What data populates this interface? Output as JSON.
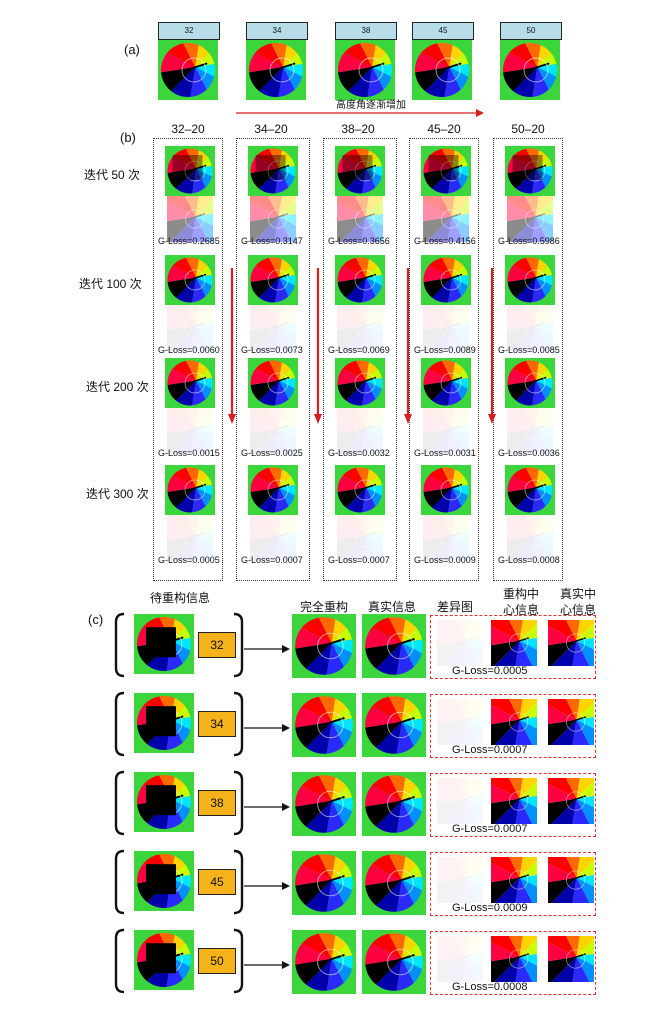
{
  "panel_a": {
    "label": "(a)",
    "headers": [
      "32",
      "34",
      "38",
      "45",
      "50"
    ],
    "arrow_text": "高度角逐渐增加"
  },
  "panel_b": {
    "label": "(b)",
    "columns": [
      "32–20",
      "34–20",
      "38–20",
      "45–20",
      "50–20"
    ],
    "iterations": [
      "迭代 50 次",
      "迭代 100 次",
      "迭代 200 次",
      "迭代 300 次"
    ],
    "gloss": [
      [
        "G-Loss=0.2685",
        "G-Loss=0.3147",
        "G-Loss=0.3656",
        "G-Loss=0.4156",
        "G-Loss=0.5986"
      ],
      [
        "G-Loss=0.0060",
        "G-Loss=0.0073",
        "G-Loss=0.0069",
        "G-Loss=0.0089",
        "G-Loss=0.0085"
      ],
      [
        "G-Loss=0.0015",
        "G-Loss=0.0025",
        "G-Loss=0.0032",
        "G-Loss=0.0031",
        "G-Loss=0.0036"
      ],
      [
        "G-Loss=0.0005",
        "G-Loss=0.0007",
        "G-Loss=0.0007",
        "G-Loss=0.0009",
        "G-Loss=0.0008"
      ]
    ]
  },
  "panel_c": {
    "label": "(c)",
    "headers": {
      "input": "待重构信息",
      "full": "完全重构",
      "truth": "真实信息",
      "diff": "差异图",
      "rec_center_1": "重构中",
      "rec_center_2": "心信息",
      "true_center_1": "真实中",
      "true_center_2": "心信息"
    },
    "rows": [
      {
        "angle": "32",
        "gloss": "G-Loss=0.0005"
      },
      {
        "angle": "34",
        "gloss": "G-Loss=0.0007"
      },
      {
        "angle": "38",
        "gloss": "G-Loss=0.0007"
      },
      {
        "angle": "45",
        "gloss": "G-Loss=0.0009"
      },
      {
        "angle": "50",
        "gloss": "G-Loss=0.0008"
      }
    ]
  },
  "colors": {
    "green_bg": "#3bd63b",
    "red_arrow": "#d42020",
    "header_box": "#b7dde8",
    "angle_box": "#f5b21b"
  }
}
